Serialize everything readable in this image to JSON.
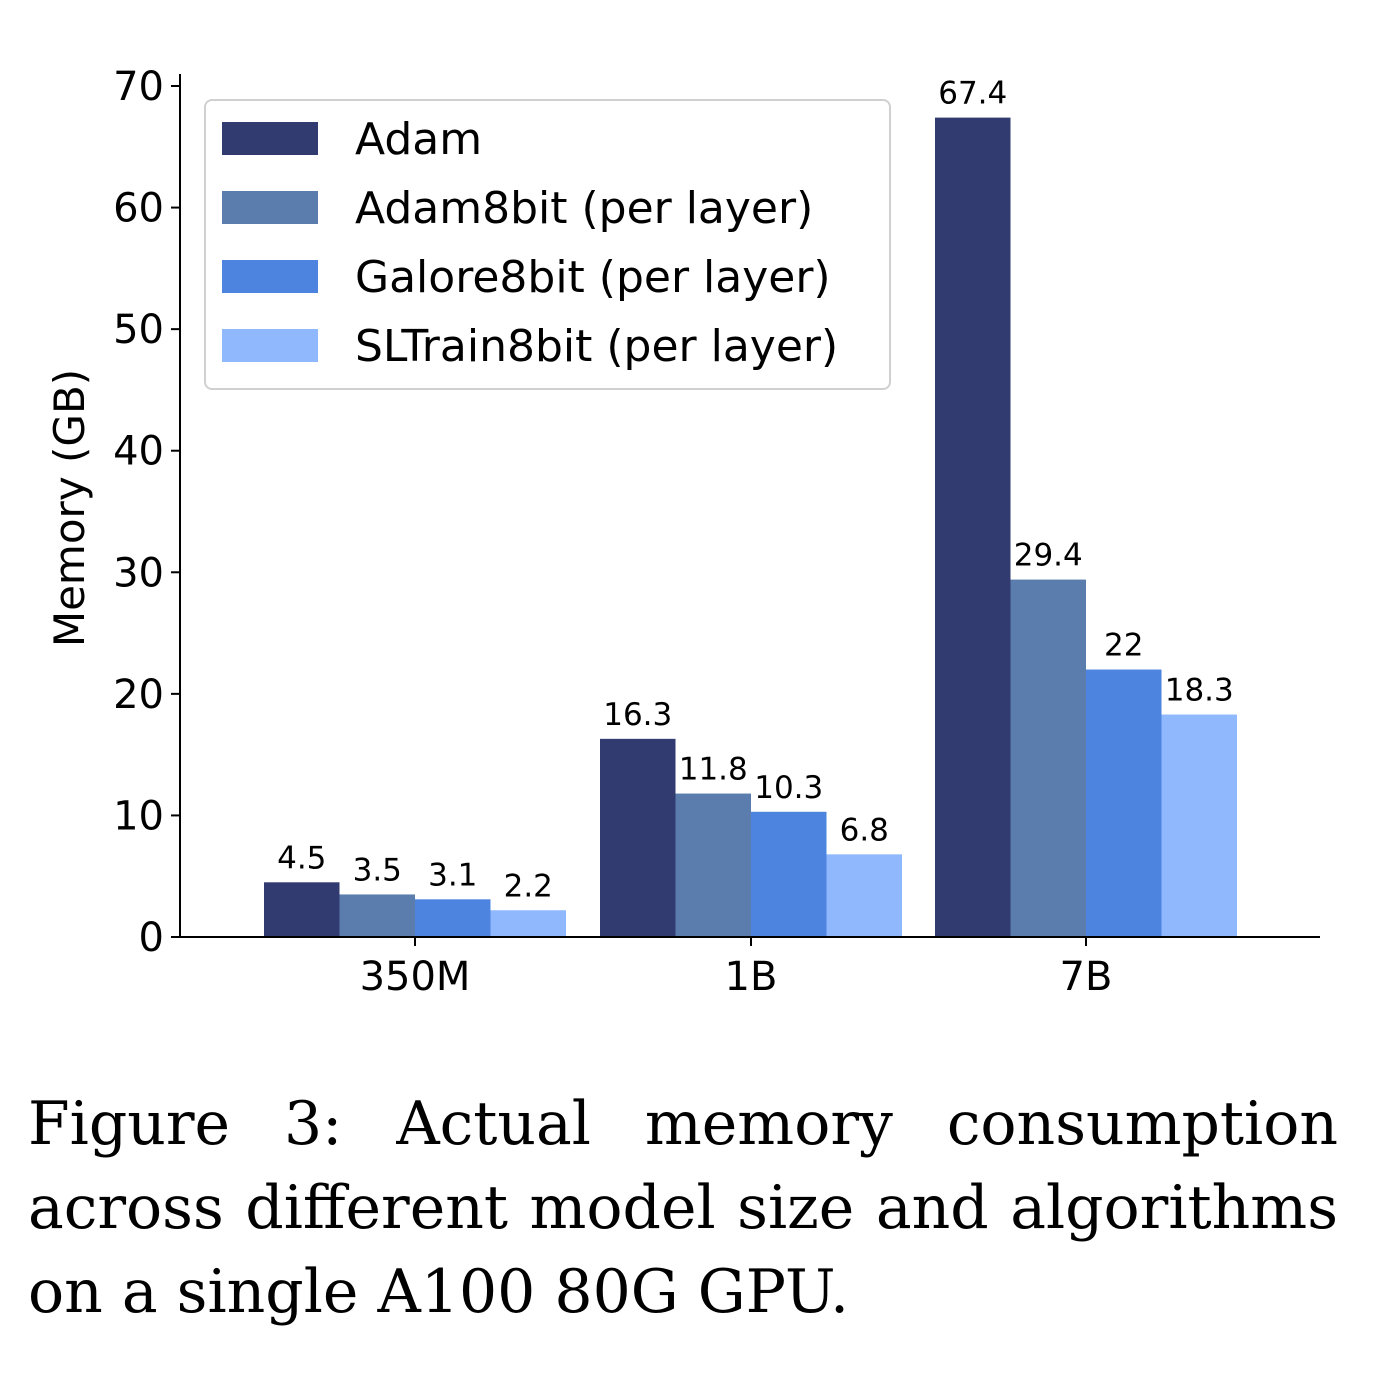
{
  "chart_data": {
    "type": "bar",
    "categories": [
      "350M",
      "1B",
      "7B"
    ],
    "series": [
      {
        "name": "Adam",
        "color": "#313b70",
        "values": [
          4.5,
          16.3,
          67.4
        ],
        "labels": [
          "4.5",
          "16.3",
          "67.4"
        ]
      },
      {
        "name": "Adam8bit (per layer)",
        "color": "#5b7dad",
        "values": [
          3.5,
          11.8,
          29.4
        ],
        "labels": [
          "3.5",
          "11.8",
          "29.4"
        ]
      },
      {
        "name": "Galore8bit (per layer)",
        "color": "#4c84df",
        "values": [
          3.1,
          10.3,
          22
        ],
        "labels": [
          "3.1",
          "10.3",
          "22"
        ]
      },
      {
        "name": "SLTrain8bit (per layer)",
        "color": "#8fb9fc",
        "values": [
          2.2,
          6.8,
          18.3
        ],
        "labels": [
          "2.2",
          "6.8",
          "18.3"
        ]
      }
    ],
    "ylabel": "Memory (GB)",
    "xlabel": "",
    "ylim": [
      0,
      70
    ],
    "yticks": [
      0,
      10,
      20,
      30,
      40,
      50,
      60,
      70
    ],
    "legend_position": "top-left",
    "grid": false
  },
  "caption": "Figure 3:  Actual memory consumption across different model size and algorithms on a single A100 80G GPU."
}
